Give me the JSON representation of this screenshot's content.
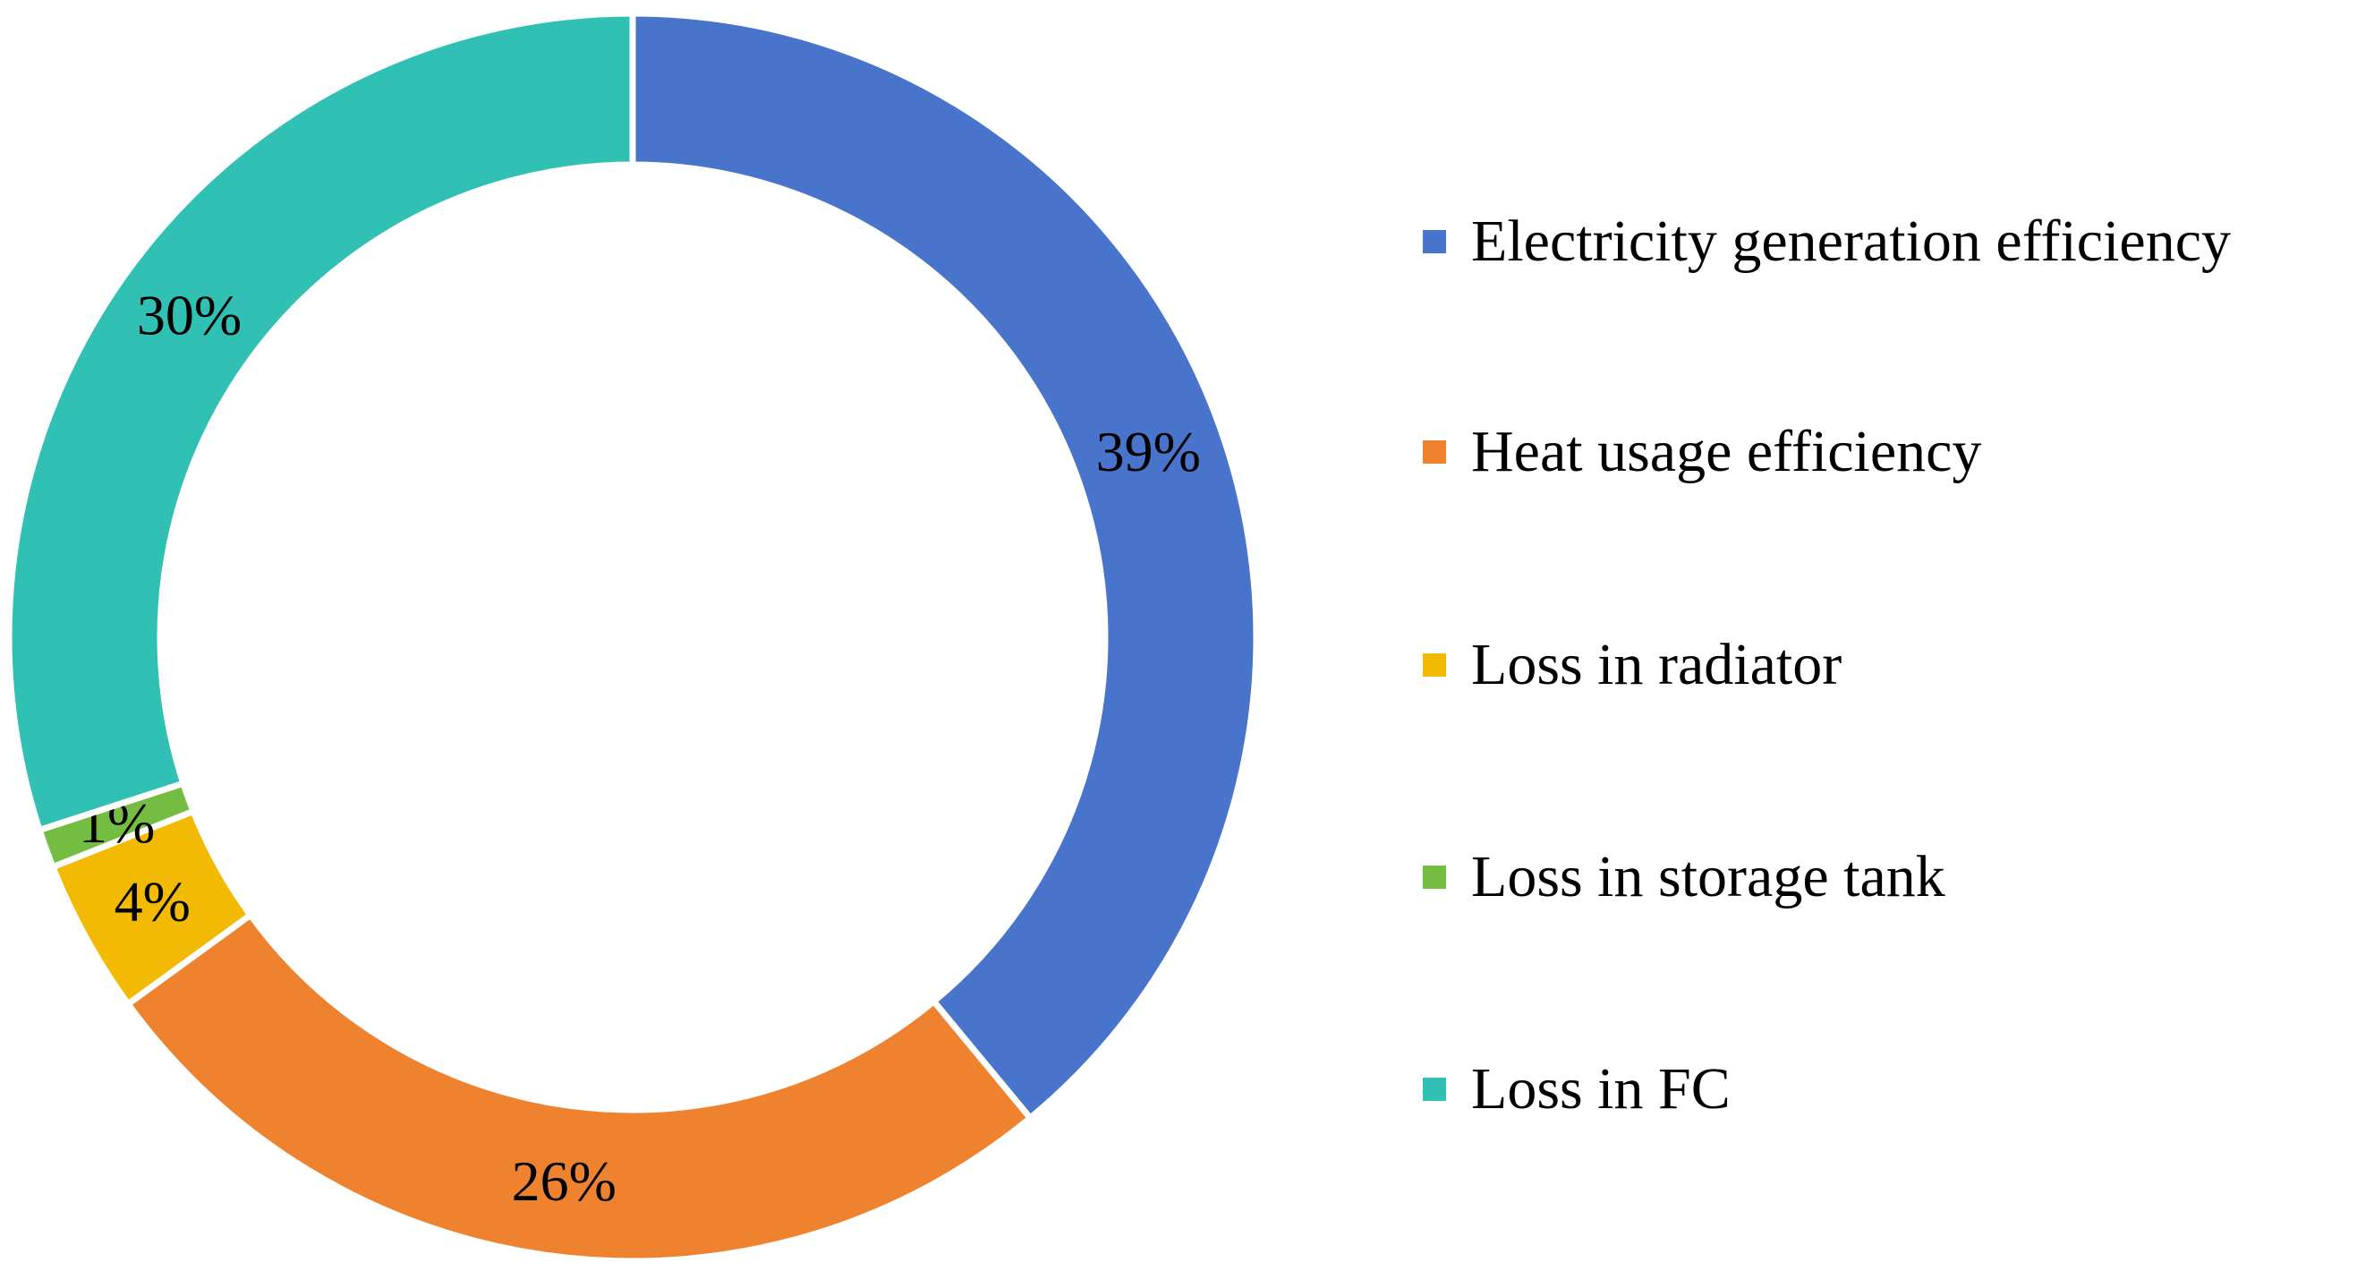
{
  "chart_data": {
    "type": "pie",
    "variant": "donut",
    "categories": [
      "Electricity generation efficiency",
      "Heat usage efficiency",
      "Loss in radiator",
      "Loss in storage tank",
      "Loss in FC"
    ],
    "values": [
      39,
      26,
      4,
      1,
      30
    ],
    "data_labels": [
      "39%",
      "26%",
      "4%",
      "1%",
      "30%"
    ],
    "colors": [
      "#4874CB",
      "#EE822F",
      "#F2BA02",
      "#75BD42",
      "#30C0B4"
    ],
    "legend": {
      "position": "right",
      "items": [
        "Electricity generation efficiency",
        "Heat usage efficiency",
        "Loss in radiator",
        "Loss in storage tank",
        "Loss in FC"
      ]
    }
  }
}
